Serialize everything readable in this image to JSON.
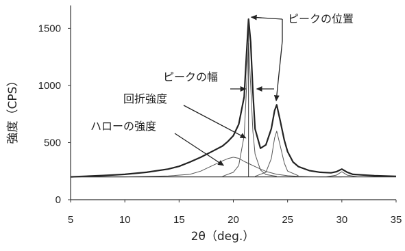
{
  "chart_data": {
    "type": "line",
    "xlabel": "2θ（deg.）",
    "ylabel": "強度（CPS）",
    "xlim": [
      5,
      35
    ],
    "ylim": [
      0,
      1700
    ],
    "xticks": [
      5,
      10,
      15,
      20,
      25,
      30,
      35
    ],
    "yticks": [
      0,
      500,
      1000,
      1500
    ],
    "grid": false,
    "series": [
      {
        "x": [
          5,
          8,
          10,
          12,
          14,
          15,
          16,
          17,
          18,
          19,
          19.5,
          20,
          20.5,
          21,
          21.2,
          21.4,
          21.6,
          21.8,
          22,
          22.5,
          23,
          23.5,
          23.8,
          24,
          24.3,
          24.7,
          25,
          25.5,
          26,
          27,
          28,
          29,
          29.5,
          30,
          30.5,
          31,
          33,
          35
        ],
        "y": [
          200,
          212,
          222,
          240,
          268,
          292,
          330,
          372,
          420,
          470,
          510,
          560,
          660,
          900,
          1250,
          1580,
          1380,
          950,
          620,
          450,
          480,
          620,
          780,
          830,
          700,
          520,
          420,
          330,
          290,
          255,
          240,
          235,
          245,
          268,
          240,
          222,
          210,
          205
        ]
      },
      {
        "x": [
          5,
          10,
          14,
          16,
          17,
          18,
          19,
          19.5,
          20,
          20.5,
          21,
          22,
          23,
          24,
          25,
          26,
          27,
          28,
          30
        ],
        "y": [
          200,
          200,
          208,
          222,
          250,
          295,
          340,
          360,
          372,
          362,
          335,
          290,
          248,
          222,
          210,
          204,
          201,
          200,
          200
        ]
      },
      {
        "x": [
          19,
          20,
          20.5,
          21,
          21.2,
          21.4,
          21.6,
          21.8,
          22,
          22.5,
          23,
          24
        ],
        "y": [
          205,
          240,
          300,
          560,
          950,
          1370,
          1000,
          600,
          400,
          260,
          220,
          205
        ]
      },
      {
        "x": [
          22,
          23,
          23.5,
          23.8,
          24,
          24.3,
          24.7,
          25,
          26
        ],
        "y": [
          205,
          240,
          360,
          540,
          600,
          480,
          320,
          250,
          210
        ]
      },
      {
        "x": [
          28.5,
          29.5,
          30,
          30.5,
          31.5
        ],
        "y": [
          200,
          215,
          245,
          215,
          200
        ]
      },
      {
        "x": [
          5,
          35
        ],
        "y": [
          200,
          200
        ]
      }
    ],
    "annotations": [
      {
        "text": "ピークの位置"
      },
      {
        "text": "ピークの幅"
      },
      {
        "text": "回折強度"
      },
      {
        "text": "ハローの強度"
      }
    ]
  }
}
